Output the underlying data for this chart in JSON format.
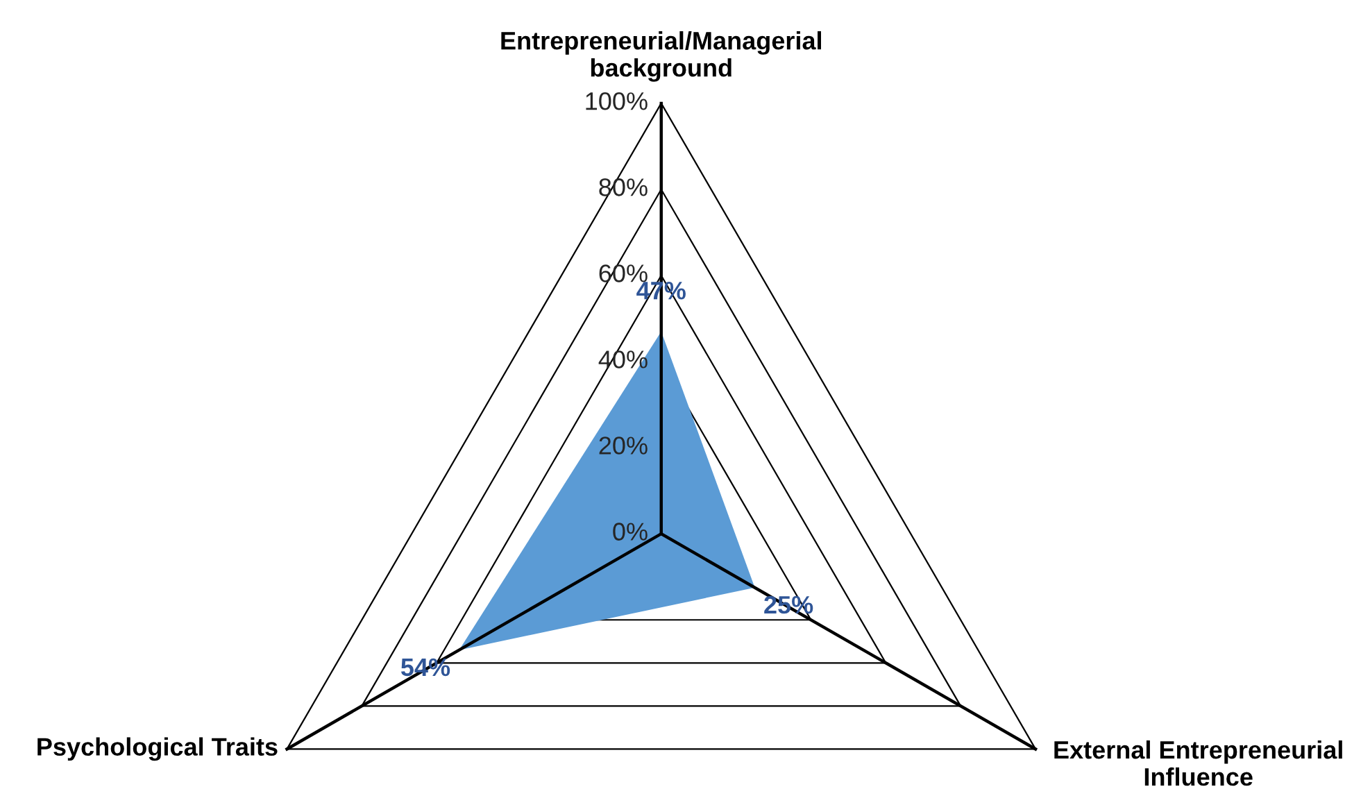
{
  "chart_data": {
    "type": "radar",
    "categories": [
      "Entrepreneurial/Managerial\nbackground",
      "External Entrepreneurial\nInfluence",
      "Psychological Traits"
    ],
    "series": [
      {
        "color": "#5b9bd5",
        "values": [
          47,
          25,
          54
        ],
        "value_labels": [
          "47%",
          "25%",
          "54%"
        ]
      }
    ],
    "ylim": [
      0,
      100
    ],
    "yticks": [
      {
        "value": 0,
        "label": "0%"
      },
      {
        "value": 20,
        "label": "20%"
      },
      {
        "value": 40,
        "label": "40%"
      },
      {
        "value": 60,
        "label": "60%"
      },
      {
        "value": 80,
        "label": "80%"
      },
      {
        "value": 100,
        "label": "100%"
      }
    ],
    "grid": true,
    "legend": false
  }
}
